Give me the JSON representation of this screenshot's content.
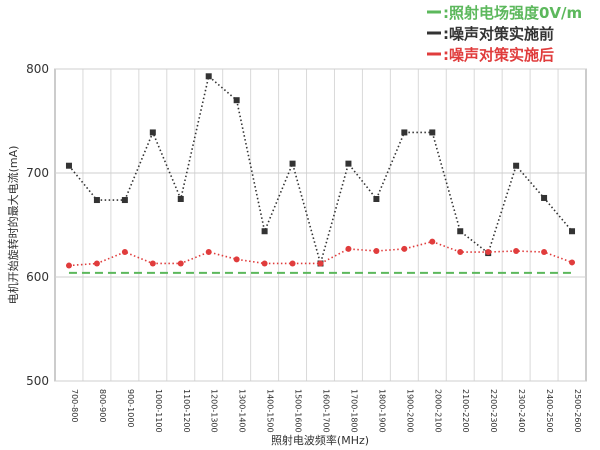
{
  "chart_data": {
    "type": "line",
    "xlabel": "照射电波频率(MHz)",
    "ylabel": "电机开始旋转时的最大电流(mA)",
    "ylim": [
      500,
      800
    ],
    "yticks": [
      500,
      600,
      700,
      800
    ],
    "grid": true,
    "legend_placement": "top-right",
    "categories": [
      "700-800",
      "800-900",
      "900-1000",
      "1000-1100",
      "1100-1200",
      "1200-1300",
      "1300-1400",
      "1400-1500",
      "1500-1600",
      "1600-1700",
      "1700-1800",
      "1800-1900",
      "1900-2000",
      "2000-2100",
      "2100-2200",
      "2200-2300",
      "2300-2400",
      "2400-2500",
      "2500-2600"
    ],
    "series": [
      {
        "name": ":照射电场强度0V/m",
        "color": "#5cb85c",
        "style": "dashed",
        "marker": "none",
        "values": [
          604,
          604,
          604,
          604,
          604,
          604,
          604,
          604,
          604,
          604,
          604,
          604,
          604,
          604,
          604,
          604,
          604,
          604,
          604
        ]
      },
      {
        "name": ":噪声对策实施前",
        "color": "#333333",
        "style": "dotted",
        "marker": "square",
        "values": [
          707,
          674,
          674,
          739,
          675,
          793,
          770,
          644,
          709,
          613,
          709,
          675,
          739,
          739,
          644,
          623,
          707,
          676,
          644
        ]
      },
      {
        "name": ":噪声对策实施后",
        "color": "#e03c3c",
        "style": "dotted",
        "marker": "circle",
        "values": [
          611,
          613,
          624,
          613,
          613,
          624,
          617,
          613,
          613,
          613,
          627,
          625,
          627,
          634,
          624,
          624,
          625,
          624,
          614
        ]
      }
    ]
  }
}
